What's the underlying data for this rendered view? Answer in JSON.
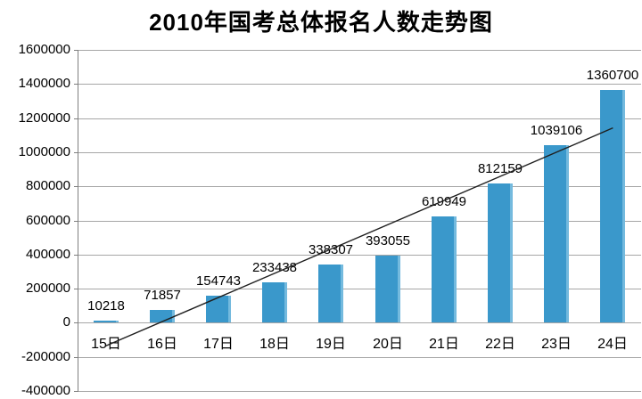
{
  "chart_data": {
    "type": "bar",
    "title": "2010年国考总体报名人数走势图",
    "categories": [
      "15日",
      "16日",
      "17日",
      "18日",
      "19日",
      "20日",
      "21日",
      "22日",
      "23日",
      "24日"
    ],
    "values": [
      10218,
      71857,
      154743,
      233438,
      338307,
      393055,
      619949,
      812159,
      1039106,
      1360700
    ],
    "data_labels": [
      "10218",
      "71857",
      "154743",
      "233438",
      "338307",
      "393055",
      "619949",
      "812159",
      "1039106",
      "1360700"
    ],
    "xlabel": "",
    "ylabel": "",
    "ylim": [
      -400000,
      1600000
    ],
    "ytick_interval": 200000,
    "ytick_labels": [
      "1600000",
      "1400000",
      "1200000",
      "1000000",
      "800000",
      "600000",
      "400000",
      "200000",
      "0",
      "-200000",
      "-400000"
    ],
    "grid": true,
    "legend": "none",
    "trendline": {
      "type": "linear"
    },
    "colors": {
      "bar": "#3a98cb",
      "bar_edge_highlight": "#74bade",
      "gridline": "#a6a6a6",
      "axis": "#7f7f7f",
      "trendline": "#1f1f1f",
      "text": "#000000",
      "background": "#ffffff"
    }
  }
}
